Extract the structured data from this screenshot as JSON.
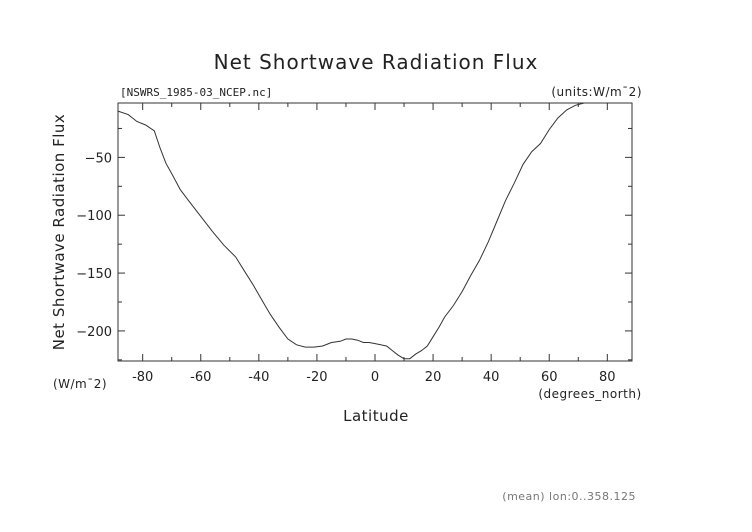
{
  "chart_data": {
    "type": "line",
    "title": "Net Shortwave Radiation Flux",
    "file_label": "[NSWRS_1985-03_NCEP.nc]",
    "units_label": "(units:W/m¯2)",
    "ylabel": "Net Shortwave Radiation Flux",
    "yunit": "(W/m¯2)",
    "xlabel": "Latitude",
    "xunit": "(degrees_north)",
    "footnote": "(mean) lon:0..358.125",
    "xlim": [
      -88.5,
      88.5
    ],
    "ylim": [
      -226,
      -3
    ],
    "xticks": [
      -80,
      -60,
      -40,
      -20,
      0,
      20,
      40,
      60,
      80
    ],
    "yticks": [
      -50,
      -100,
      -150,
      -200
    ],
    "grid": false,
    "line_color": "#333333",
    "x": [
      -88.5,
      -85,
      -82,
      -79,
      -76,
      -74,
      -72,
      -70,
      -67,
      -64,
      -60,
      -56,
      -52,
      -48,
      -45,
      -42,
      -39,
      -36,
      -33,
      -30,
      -27,
      -24,
      -21,
      -18,
      -15,
      -12,
      -10,
      -8,
      -6,
      -4,
      -2,
      0,
      2,
      4,
      6,
      8,
      10,
      12,
      14,
      16,
      18,
      20,
      22,
      24,
      27,
      30,
      33,
      36,
      39,
      42,
      45,
      48,
      51,
      54,
      57,
      60,
      63,
      66,
      69,
      72,
      75,
      78,
      81,
      84,
      86,
      88.5
    ],
    "y": [
      -10,
      -13,
      -19,
      -22,
      -27,
      -42,
      -55,
      -64,
      -78,
      -88,
      -101,
      -114,
      -126,
      -136,
      -148,
      -160,
      -173,
      -186,
      -197,
      -207,
      -212,
      -214,
      -214,
      -213,
      -210,
      -209,
      -207,
      -207,
      -208,
      -210,
      -210,
      -211,
      -212,
      -213,
      -217,
      -221,
      -224,
      -224,
      -220,
      -217,
      -213,
      -205,
      -197,
      -188,
      -178,
      -166,
      -152,
      -139,
      -123,
      -105,
      -87,
      -72,
      -56,
      -45,
      -38,
      -26,
      -16,
      -9,
      -5,
      -3,
      -3,
      -3,
      -3,
      -3,
      -3,
      -3
    ]
  }
}
